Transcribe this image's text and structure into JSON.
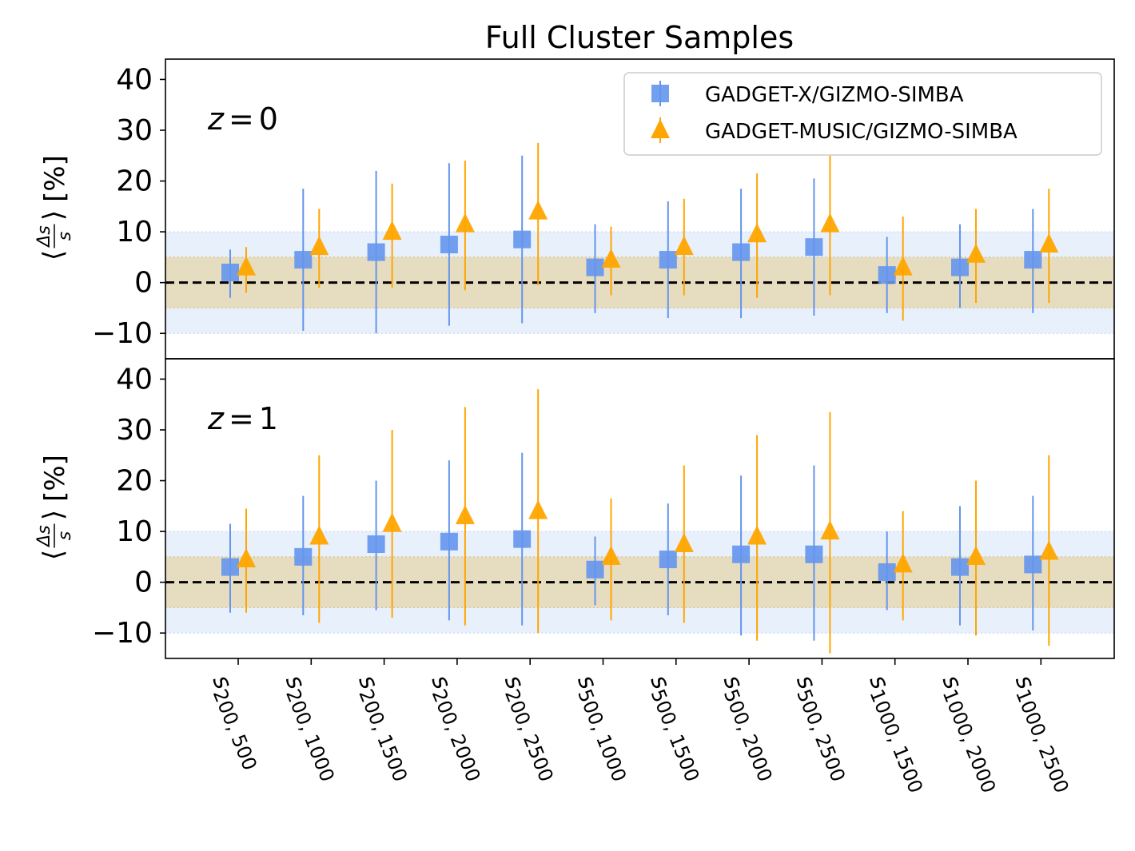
{
  "chart_data": {
    "type": "scatter",
    "title": "Full Cluster Samples",
    "ylabel": "⟨Δs/s⟩ [%]",
    "ylabel_parts": {
      "open": "⟨",
      "num": "Δs",
      "den": "s",
      "close": "⟩",
      "unit": "[%]"
    },
    "ylim": [
      -15,
      44
    ],
    "yticks": [
      -10,
      0,
      10,
      20,
      30,
      40
    ],
    "ytick_labels": [
      "−10",
      "0",
      "10",
      "20",
      "30",
      "40"
    ],
    "categories": [
      {
        "sym": "s",
        "sub": "200, 500"
      },
      {
        "sym": "s",
        "sub": "200, 1000"
      },
      {
        "sym": "s",
        "sub": "200, 1500"
      },
      {
        "sym": "s",
        "sub": "200, 2000"
      },
      {
        "sym": "s",
        "sub": "200, 2500"
      },
      {
        "sym": "s",
        "sub": "500, 1000"
      },
      {
        "sym": "s",
        "sub": "500, 1500"
      },
      {
        "sym": "s",
        "sub": "500, 2000"
      },
      {
        "sym": "s",
        "sub": "500, 2500"
      },
      {
        "sym": "s",
        "sub": "1000, 1500"
      },
      {
        "sym": "s",
        "sub": "1000, 2000"
      },
      {
        "sym": "s",
        "sub": "1000, 2500"
      }
    ],
    "bands": [
      {
        "name": "±10% band",
        "range": [
          -10,
          10
        ],
        "color": "#e8f0fc"
      },
      {
        "name": "±5% band",
        "range": [
          -5,
          5
        ],
        "color": "#e6dcc0"
      }
    ],
    "reference_line": 0,
    "legend": {
      "position": "top-right",
      "entries": [
        {
          "label": "GADGET-X/GIZMO-SIMBA",
          "marker": "square",
          "color": "#6495ed"
        },
        {
          "label": "GADGET-MUSIC/GIZMO-SIMBA",
          "marker": "triangle",
          "color": "#ffa500"
        }
      ]
    },
    "panels": [
      {
        "name": "z0",
        "annotation": {
          "var": "z",
          "op": "=",
          "val": "0"
        },
        "series": [
          {
            "name": "GADGET-X/GIZMO-SIMBA",
            "marker": "square",
            "color": "#6495ed",
            "values": [
              2.0,
              4.5,
              6.0,
              7.5,
              8.5,
              3.0,
              4.5,
              6.0,
              7.0,
              1.5,
              3.0,
              4.5
            ],
            "err_low": [
              -3.0,
              -9.5,
              -10.0,
              -8.5,
              -8.0,
              -6.0,
              -7.0,
              -7.0,
              -6.5,
              -6.0,
              -5.0,
              -6.0
            ],
            "err_high": [
              6.5,
              18.5,
              22.0,
              23.5,
              25.0,
              11.5,
              16.0,
              18.5,
              20.5,
              9.0,
              11.5,
              14.5
            ]
          },
          {
            "name": "GADGET-MUSIC/GIZMO-SIMBA",
            "marker": "triangle",
            "color": "#ffa500",
            "values": [
              3.0,
              7.0,
              10.0,
              11.5,
              14.0,
              4.5,
              7.0,
              9.5,
              11.5,
              3.0,
              5.5,
              7.5
            ],
            "err_low": [
              -2.0,
              -1.0,
              -1.0,
              -1.5,
              -0.5,
              -2.5,
              -2.5,
              -3.0,
              -2.5,
              -7.5,
              -4.0,
              -4.0
            ],
            "err_high": [
              7.0,
              14.5,
              19.5,
              24.0,
              27.5,
              11.0,
              16.5,
              21.5,
              25.0,
              13.0,
              14.5,
              18.5
            ]
          }
        ]
      },
      {
        "name": "z1",
        "annotation": {
          "var": "z",
          "op": "=",
          "val": "1"
        },
        "series": [
          {
            "name": "GADGET-X/GIZMO-SIMBA",
            "marker": "square",
            "color": "#6495ed",
            "values": [
              3.0,
              5.0,
              7.5,
              8.0,
              8.5,
              2.5,
              4.5,
              5.5,
              5.5,
              2.0,
              3.0,
              3.5
            ],
            "err_low": [
              -6.0,
              -6.5,
              -5.5,
              -7.5,
              -8.5,
              -4.5,
              -6.5,
              -10.5,
              -11.5,
              -5.5,
              -8.5,
              -9.5
            ],
            "err_high": [
              11.5,
              17.0,
              20.0,
              24.0,
              25.5,
              9.0,
              15.5,
              21.0,
              23.0,
              10.0,
              15.0,
              17.0
            ]
          },
          {
            "name": "GADGET-MUSIC/GIZMO-SIMBA",
            "marker": "triangle",
            "color": "#ffa500",
            "values": [
              4.5,
              9.0,
              11.5,
              13.0,
              14.0,
              5.0,
              7.5,
              9.0,
              10.0,
              3.5,
              5.0,
              6.0
            ],
            "err_low": [
              -6.0,
              -8.0,
              -7.0,
              -8.5,
              -10.0,
              -7.5,
              -8.0,
              -11.5,
              -14.0,
              -7.5,
              -10.5,
              -12.5
            ],
            "err_high": [
              14.5,
              25.0,
              30.0,
              34.5,
              38.0,
              16.5,
              23.0,
              29.0,
              33.5,
              14.0,
              20.0,
              25.0
            ]
          }
        ]
      }
    ]
  }
}
